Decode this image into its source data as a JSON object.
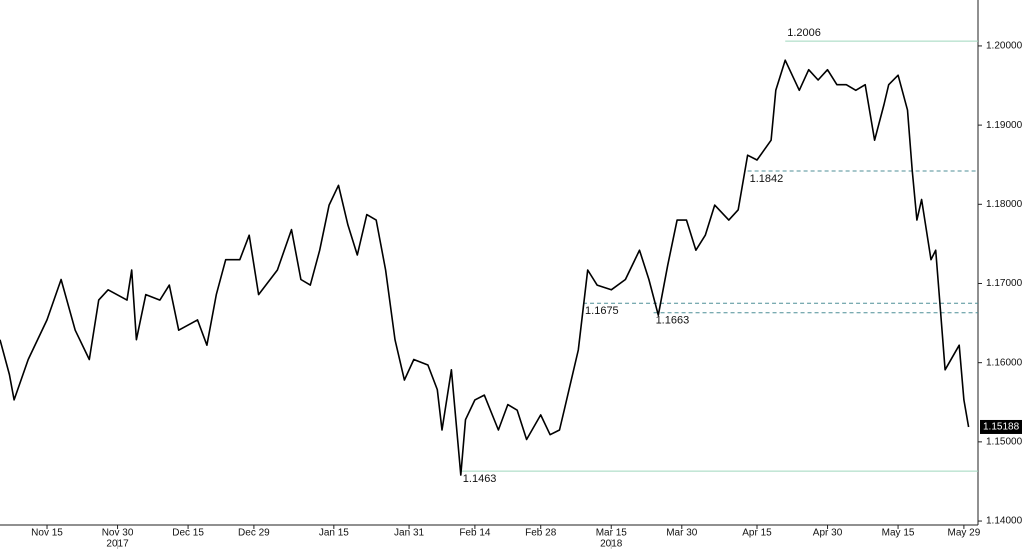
{
  "chart_data": {
    "type": "line",
    "color": "#000000",
    "x": [
      "2017-11-05",
      "2017-11-07",
      "2017-11-08",
      "2017-11-11",
      "2017-11-15",
      "2017-11-18",
      "2017-11-21",
      "2017-11-24",
      "2017-11-26",
      "2017-11-28",
      "2017-12-02",
      "2017-12-03",
      "2017-12-04",
      "2017-12-06",
      "2017-12-09",
      "2017-12-11",
      "2017-12-13",
      "2017-12-17",
      "2017-12-19",
      "2017-12-21",
      "2017-12-23",
      "2017-12-26",
      "2017-12-28",
      "2017-12-30",
      "2018-01-03",
      "2018-01-06",
      "2018-01-08",
      "2018-01-10",
      "2018-01-12",
      "2018-01-14",
      "2018-01-16",
      "2018-01-18",
      "2018-01-20",
      "2018-01-22",
      "2018-01-24",
      "2018-01-26",
      "2018-01-28",
      "2018-01-30",
      "2018-02-01",
      "2018-02-04",
      "2018-02-06",
      "2018-02-07",
      "2018-02-09",
      "2018-02-11",
      "2018-02-12",
      "2018-02-14",
      "2018-02-16",
      "2018-02-19",
      "2018-02-21",
      "2018-02-23",
      "2018-02-25",
      "2018-02-28",
      "2018-03-02",
      "2018-03-04",
      "2018-03-05",
      "2018-03-08",
      "2018-03-10",
      "2018-03-12",
      "2018-03-15",
      "2018-03-18",
      "2018-03-21",
      "2018-03-23",
      "2018-03-25",
      "2018-03-27",
      "2018-03-29",
      "2018-03-31",
      "2018-04-02",
      "2018-04-04",
      "2018-04-06",
      "2018-04-09",
      "2018-04-11",
      "2018-04-13",
      "2018-04-15",
      "2018-04-18",
      "2018-04-19",
      "2018-04-21",
      "2018-04-24",
      "2018-04-26",
      "2018-04-28",
      "2018-04-30",
      "2018-05-02",
      "2018-05-04",
      "2018-05-06",
      "2018-05-08",
      "2018-05-10",
      "2018-05-12",
      "2018-05-13",
      "2018-05-15",
      "2018-05-17",
      "2018-05-18",
      "2018-05-19",
      "2018-05-20",
      "2018-05-22",
      "2018-05-23",
      "2018-05-24",
      "2018-05-25",
      "2018-05-28",
      "2018-05-29",
      "2018-05-30"
    ],
    "values": [
      1.1629,
      1.1585,
      1.1553,
      1.1604,
      1.1654,
      1.1705,
      1.1641,
      1.1604,
      1.1679,
      1.1692,
      1.1679,
      1.1717,
      1.1629,
      1.1686,
      1.1679,
      1.1698,
      1.1641,
      1.1654,
      1.1622,
      1.1686,
      1.173,
      1.173,
      1.1761,
      1.1686,
      1.1717,
      1.1768,
      1.1705,
      1.1698,
      1.1742,
      1.1799,
      1.1824,
      1.1774,
      1.1736,
      1.1787,
      1.178,
      1.1717,
      1.1629,
      1.1578,
      1.1604,
      1.1597,
      1.1566,
      1.1515,
      1.1591,
      1.1458,
      1.1528,
      1.1553,
      1.1559,
      1.1515,
      1.1547,
      1.154,
      1.1503,
      1.1534,
      1.1509,
      1.1515,
      1.154,
      1.1616,
      1.1717,
      1.1698,
      1.1692,
      1.1705,
      1.1742,
      1.1705,
      1.166,
      1.1723,
      1.178,
      1.178,
      1.1742,
      1.1761,
      1.1799,
      1.178,
      1.1793,
      1.1862,
      1.1856,
      1.1881,
      1.1944,
      1.1982,
      1.1944,
      1.197,
      1.1957,
      1.197,
      1.1951,
      1.1951,
      1.1944,
      1.1951,
      1.1881,
      1.1926,
      1.1951,
      1.1963,
      1.1919,
      1.1843,
      1.178,
      1.1806,
      1.173,
      1.1742,
      1.1667,
      1.1591,
      1.1622,
      1.1553,
      1.15188
    ],
    "last_label": {
      "value": 1.15188,
      "label": "1.15188"
    },
    "xlim": [
      "2017-11-05",
      "2018-06-01"
    ],
    "xticks": [
      {
        "value": "2017-11-15",
        "label": "Nov 15"
      },
      {
        "value": "2017-11-30",
        "label": "Nov 30"
      },
      {
        "value": "2017-12-15",
        "label": "Dec 15"
      },
      {
        "value": "2017-12-29",
        "label": "Dec 29"
      },
      {
        "value": "2018-01-15",
        "label": "Jan 15"
      },
      {
        "value": "2018-01-31",
        "label": "Jan 31"
      },
      {
        "value": "2018-02-14",
        "label": "Feb 14"
      },
      {
        "value": "2018-02-28",
        "label": "Feb 28"
      },
      {
        "value": "2018-03-15",
        "label": "Mar 15"
      },
      {
        "value": "2018-03-30",
        "label": "Mar 30"
      },
      {
        "value": "2018-04-15",
        "label": "Apr 15"
      },
      {
        "value": "2018-04-30",
        "label": "Apr 30"
      },
      {
        "value": "2018-05-15",
        "label": "May 15"
      },
      {
        "value": "2018-05-29",
        "label": "May 29"
      }
    ],
    "year_labels": [
      {
        "value": "2017-11-30",
        "label": "2017"
      },
      {
        "value": "2018-03-15",
        "label": "2018"
      }
    ],
    "ylim": [
      1.1395,
      1.2058
    ],
    "yticks": [
      {
        "value": 1.14,
        "label": "1.14000"
      },
      {
        "value": 1.15,
        "label": "1.15000"
      },
      {
        "value": 1.16,
        "label": "1.16000"
      },
      {
        "value": 1.17,
        "label": "1.17000"
      },
      {
        "value": 1.18,
        "label": "1.18000"
      },
      {
        "value": 1.19,
        "label": "1.19000"
      },
      {
        "value": 1.2,
        "label": "1.20000"
      }
    ],
    "annotations": [
      {
        "value": 1.2006,
        "start": "2018-04-21",
        "style": "solid",
        "label_side": "above"
      },
      {
        "value": 1.1842,
        "start": "2018-04-13",
        "style": "dashed",
        "label_side": "below"
      },
      {
        "value": 1.1675,
        "start": "2018-03-09",
        "style": "dashed",
        "label_side": "below"
      },
      {
        "value": 1.1663,
        "start": "2018-03-24",
        "style": "dashed",
        "label_side": "below"
      },
      {
        "value": 1.1463,
        "start": "2018-02-11",
        "style": "solid",
        "label_side": "below"
      }
    ]
  }
}
